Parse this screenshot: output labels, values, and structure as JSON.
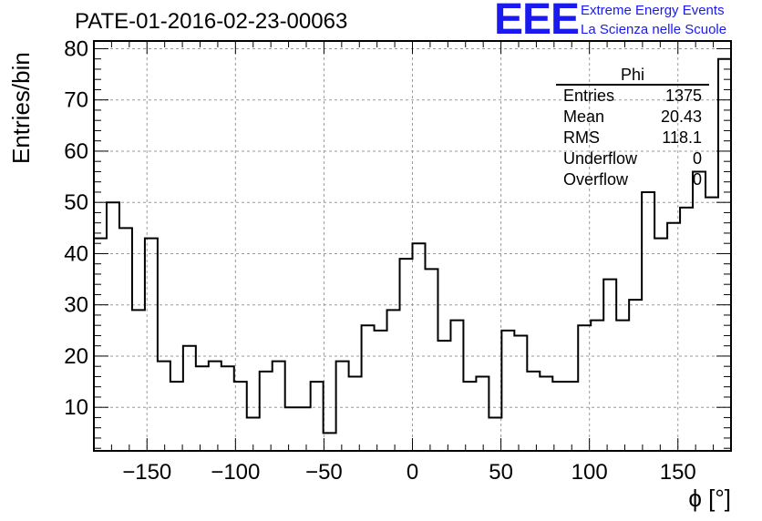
{
  "title": "PATE-01-2016-02-23-00063",
  "logo": {
    "mark": "EEE",
    "line1": "Extreme Energy Events",
    "line2": "La Scienza nelle Scuole",
    "color": "#1a1aee"
  },
  "stats_box": {
    "title": "Phi",
    "rows": [
      {
        "label": "Entries",
        "value": "1375"
      },
      {
        "label": "Mean",
        "value": "20.43"
      },
      {
        "label": "RMS",
        "value": "118.1"
      },
      {
        "label": "Underflow",
        "value": "0"
      },
      {
        "label": "Overflow",
        "value": "0"
      }
    ]
  },
  "chart_data": {
    "type": "histogram",
    "title": "PATE-01-2016-02-23-00063",
    "xlabel": "ϕ [°]",
    "ylabel": "Entries/bin",
    "xlim": [
      -180,
      180
    ],
    "ylim": [
      1.5,
      81.5
    ],
    "bin_width": 7.2,
    "bin_edges_start": -180,
    "values": [
      43,
      50,
      45,
      29,
      43,
      19,
      15,
      22,
      18,
      19,
      18,
      15,
      8,
      17,
      19,
      10,
      10,
      15,
      5,
      19,
      16,
      26,
      25,
      29,
      39,
      42,
      37,
      23,
      27,
      15,
      16,
      8,
      25,
      24,
      17,
      16,
      15,
      15,
      26,
      27,
      35,
      27,
      31,
      52,
      43,
      46,
      49,
      56,
      51,
      78
    ],
    "xticks": [
      -150,
      -100,
      -50,
      0,
      50,
      100,
      150
    ],
    "xtick_labels": [
      "−150",
      "−100",
      "−50",
      "0",
      "50",
      "100",
      "150"
    ],
    "yticks": [
      10,
      20,
      30,
      40,
      50,
      60,
      70,
      80
    ],
    "ytick_labels": [
      "10",
      "20",
      "30",
      "40",
      "50",
      "60",
      "70",
      "80"
    ],
    "grid": true,
    "line_color": "#000000"
  }
}
